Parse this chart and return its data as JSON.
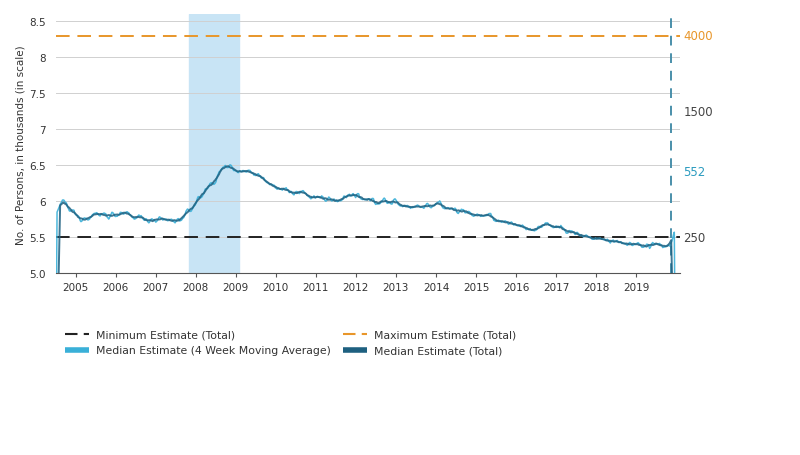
{
  "ylabel": "No. of Persons, in thousands (in scale)",
  "ylim": [
    5.0,
    8.6
  ],
  "xlim": [
    2004.5,
    2020.1
  ],
  "yticks": [
    5.0,
    5.5,
    6.0,
    6.5,
    7.0,
    7.5,
    8.0,
    8.5
  ],
  "xticks": [
    2005,
    2006,
    2007,
    2008,
    2009,
    2010,
    2011,
    2012,
    2013,
    2014,
    2015,
    2016,
    2017,
    2018,
    2019
  ],
  "min_estimate_y": 5.5,
  "max_estimate_y": 8.3,
  "min_color": "#222222",
  "max_color": "#e8962a",
  "recession_start": 2007.83,
  "recession_end": 2009.08,
  "recession_color": "#c8e4f5",
  "right_axis_labels": [
    {
      "text": "4000",
      "y": 8.3,
      "color": "#e8962a"
    },
    {
      "text": "1500",
      "y": 7.25,
      "color": "#444444"
    },
    {
      "text": "552",
      "y": 6.42,
      "color": "#2b9bbf"
    },
    {
      "text": "250",
      "y": 5.5,
      "color": "#444444"
    }
  ],
  "vertical_dashed_x": 2019.88,
  "vertical_dashed_color": "#4a8faa",
  "main_line_color": "#3ab0d8",
  "main_line_color2": "#1e6080",
  "background_color": "#ffffff",
  "grid_color": "#d0d0d0",
  "legend_items": [
    {
      "label": "Minimum Estimate (Total)",
      "color": "#222222",
      "linestyle": "--"
    },
    {
      "label": "Maximum Estimate (Total)",
      "color": "#e8962a",
      "linestyle": "--"
    },
    {
      "label": "Median Estimate (4 Week Moving Average)",
      "color": "#3ab0d8",
      "linestyle": "-"
    },
    {
      "label": "Median Estimate (Total)",
      "color": "#1e6080",
      "linestyle": "-"
    }
  ]
}
